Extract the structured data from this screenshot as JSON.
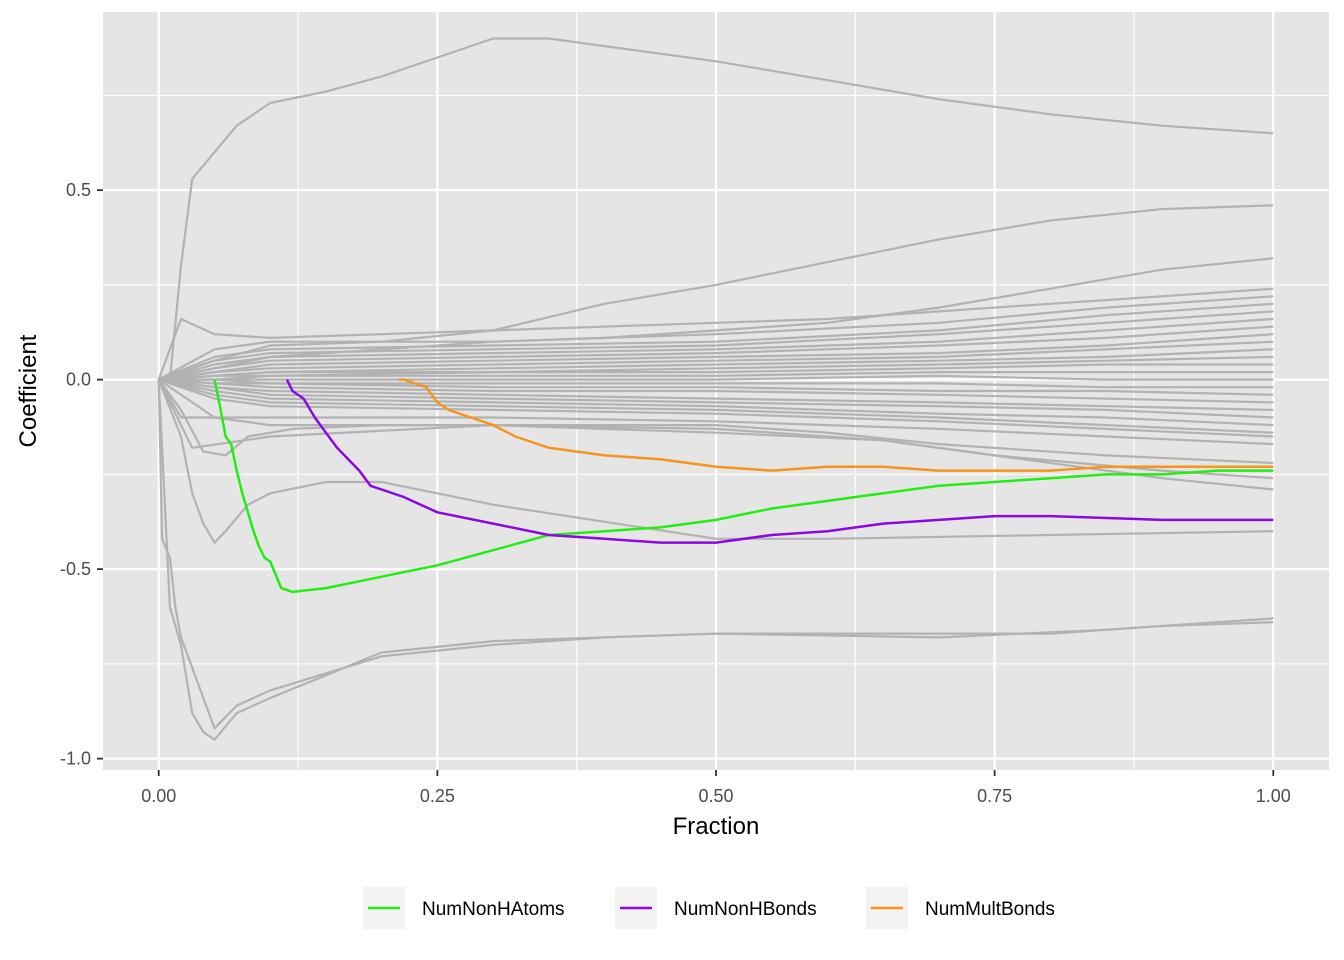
{
  "chart_data": {
    "type": "line",
    "xlabel": "Fraction",
    "ylabel": "Coefficient",
    "xlim": [
      -0.05,
      1.05
    ],
    "ylim": [
      -1.03,
      0.97
    ],
    "x_ticks": [
      0,
      0.25,
      0.5,
      0.75,
      1
    ],
    "x_tick_labels": [
      "0.00",
      "0.25",
      "0.50",
      "0.75",
      "1.00"
    ],
    "y_ticks": [
      -1,
      -0.5,
      0,
      0.5
    ],
    "y_tick_labels": [
      "-1.0",
      "-0.5",
      "0.0",
      "0.5"
    ],
    "grid": true,
    "legend_position": "bottom",
    "colors": {
      "panel": "#e5e5e5",
      "grid": "#ffffff",
      "background": "#a9a9a9b0",
      "NumNonHAtoms": "#22ee11",
      "NumNonHBonds": "#8b08e0",
      "NumMultBonds": "#f7941d"
    },
    "background_series": [
      {
        "x": [
          0,
          0.01,
          0.02,
          0.03,
          0.05,
          0.07,
          0.1,
          0.15,
          0.2,
          0.25,
          0.3,
          0.35,
          0.4,
          0.5,
          0.6,
          0.7,
          0.8,
          0.9,
          1.0
        ],
        "y": [
          0,
          0,
          0.3,
          0.53,
          0.6,
          0.67,
          0.73,
          0.76,
          0.8,
          0.85,
          0.9,
          0.9,
          0.88,
          0.84,
          0.79,
          0.74,
          0.7,
          0.67,
          0.65
        ]
      },
      {
        "x": [
          0,
          0.05,
          0.1,
          0.2,
          0.3,
          0.4,
          0.5,
          0.6,
          0.7,
          0.8,
          0.9,
          1.0
        ],
        "y": [
          0,
          0.05,
          0.09,
          0.1,
          0.13,
          0.2,
          0.25,
          0.31,
          0.37,
          0.42,
          0.45,
          0.46
        ]
      },
      {
        "x": [
          0,
          0.05,
          0.1,
          0.2,
          0.3,
          0.4,
          0.5,
          0.6,
          0.7,
          0.8,
          0.9,
          1.0
        ],
        "y": [
          0,
          0.03,
          0.06,
          0.08,
          0.1,
          0.11,
          0.13,
          0.15,
          0.19,
          0.24,
          0.29,
          0.32
        ]
      },
      {
        "x": [
          0,
          0.02,
          0.05,
          0.1,
          0.2,
          0.3,
          0.4,
          0.5,
          0.6,
          0.7,
          0.8,
          0.9,
          1.0
        ],
        "y": [
          0,
          0.16,
          0.12,
          0.11,
          0.12,
          0.13,
          0.14,
          0.15,
          0.16,
          0.18,
          0.2,
          0.22,
          0.24
        ]
      },
      {
        "x": [
          0,
          0.05,
          0.1,
          0.3,
          0.5,
          0.7,
          0.85,
          1.0
        ],
        "y": [
          0,
          0.08,
          0.1,
          0.1,
          0.12,
          0.15,
          0.19,
          0.22
        ]
      },
      {
        "x": [
          0,
          0.05,
          0.1,
          0.3,
          0.5,
          0.7,
          0.85,
          1.0
        ],
        "y": [
          0,
          0.06,
          0.08,
          0.09,
          0.1,
          0.13,
          0.17,
          0.2
        ]
      },
      {
        "x": [
          0,
          0.05,
          0.1,
          0.3,
          0.5,
          0.7,
          0.85,
          1.0
        ],
        "y": [
          0,
          0.05,
          0.07,
          0.08,
          0.09,
          0.12,
          0.15,
          0.18
        ]
      },
      {
        "x": [
          0,
          0.05,
          0.1,
          0.3,
          0.5,
          0.7,
          0.85,
          1.0
        ],
        "y": [
          0,
          0.04,
          0.06,
          0.07,
          0.08,
          0.1,
          0.13,
          0.16
        ]
      },
      {
        "x": [
          0,
          0.05,
          0.1,
          0.3,
          0.5,
          0.7,
          0.85,
          1.0
        ],
        "y": [
          0,
          0.03,
          0.05,
          0.06,
          0.07,
          0.09,
          0.11,
          0.14
        ]
      },
      {
        "x": [
          0,
          0.05,
          0.1,
          0.3,
          0.5,
          0.7,
          0.85,
          1.0
        ],
        "y": [
          0,
          0.02,
          0.04,
          0.05,
          0.06,
          0.07,
          0.09,
          0.12
        ]
      },
      {
        "x": [
          0,
          0.05,
          0.1,
          0.3,
          0.5,
          0.7,
          0.85,
          1.0
        ],
        "y": [
          0,
          0.02,
          0.03,
          0.04,
          0.05,
          0.06,
          0.08,
          0.1
        ]
      },
      {
        "x": [
          0,
          0.05,
          0.1,
          0.3,
          0.5,
          0.7,
          0.85,
          1.0
        ],
        "y": [
          0,
          0.01,
          0.02,
          0.03,
          0.04,
          0.05,
          0.06,
          0.08
        ]
      },
      {
        "x": [
          0,
          0.05,
          0.1,
          0.3,
          0.5,
          0.7,
          0.85,
          1.0
        ],
        "y": [
          0,
          0.01,
          0.02,
          0.02,
          0.03,
          0.04,
          0.05,
          0.06
        ]
      },
      {
        "x": [
          0,
          0.05,
          0.1,
          0.3,
          0.5,
          0.7,
          0.85,
          1.0
        ],
        "y": [
          0,
          0.01,
          0.01,
          0.02,
          0.02,
          0.03,
          0.04,
          0.04
        ]
      },
      {
        "x": [
          0,
          0.05,
          0.1,
          0.3,
          0.5,
          0.7,
          0.85,
          1.0
        ],
        "y": [
          0,
          0,
          0.01,
          0.01,
          0.01,
          0.02,
          0.02,
          0.02
        ]
      },
      {
        "x": [
          0,
          0.05,
          0.1,
          0.3,
          0.5,
          0.7,
          0.85,
          1.0
        ],
        "y": [
          0,
          0,
          0,
          0,
          0,
          0.01,
          0,
          0
        ]
      },
      {
        "x": [
          0,
          0.05,
          0.1,
          0.3,
          0.5,
          0.7,
          0.85,
          1.0
        ],
        "y": [
          0,
          0,
          -0.01,
          -0.01,
          -0.01,
          -0.01,
          -0.02,
          -0.02
        ]
      },
      {
        "x": [
          0,
          0.05,
          0.1,
          0.3,
          0.5,
          0.7,
          0.85,
          1.0
        ],
        "y": [
          0,
          -0.01,
          -0.01,
          -0.02,
          -0.02,
          -0.03,
          -0.03,
          -0.04
        ]
      },
      {
        "x": [
          0,
          0.05,
          0.1,
          0.3,
          0.5,
          0.7,
          0.85,
          1.0
        ],
        "y": [
          0,
          -0.01,
          -0.02,
          -0.03,
          -0.03,
          -0.04,
          -0.05,
          -0.06
        ]
      },
      {
        "x": [
          0,
          0.05,
          0.1,
          0.3,
          0.5,
          0.7,
          0.85,
          1.0
        ],
        "y": [
          0,
          -0.02,
          -0.03,
          -0.04,
          -0.05,
          -0.06,
          -0.07,
          -0.08
        ]
      },
      {
        "x": [
          0,
          0.05,
          0.1,
          0.3,
          0.5,
          0.7,
          0.85,
          1.0
        ],
        "y": [
          0,
          -0.02,
          -0.04,
          -0.05,
          -0.06,
          -0.07,
          -0.08,
          -0.1
        ]
      },
      {
        "x": [
          0,
          0.05,
          0.1,
          0.3,
          0.5,
          0.7,
          0.85,
          1.0
        ],
        "y": [
          0,
          -0.03,
          -0.05,
          -0.06,
          -0.07,
          -0.09,
          -0.1,
          -0.12
        ]
      },
      {
        "x": [
          0,
          0.05,
          0.1,
          0.3,
          0.5,
          0.7,
          0.85,
          1.0
        ],
        "y": [
          0,
          -0.04,
          -0.06,
          -0.07,
          -0.08,
          -0.1,
          -0.12,
          -0.14
        ]
      },
      {
        "x": [
          0,
          0.05,
          0.1,
          0.3,
          0.5,
          0.7,
          0.85,
          1.0
        ],
        "y": [
          0,
          -0.05,
          -0.07,
          -0.08,
          -0.09,
          -0.11,
          -0.13,
          -0.15
        ]
      },
      {
        "x": [
          0,
          0.02,
          0.05,
          0.1,
          0.3,
          0.5,
          0.7,
          0.85,
          1.0
        ],
        "y": [
          0,
          -0.1,
          -0.1,
          -0.1,
          -0.1,
          -0.11,
          -0.13,
          -0.15,
          -0.17
        ]
      },
      {
        "x": [
          0,
          0.03,
          0.1,
          0.3,
          0.5,
          0.6,
          0.7,
          0.85,
          1.0
        ],
        "y": [
          0,
          -0.18,
          -0.15,
          -0.12,
          -0.12,
          -0.14,
          -0.17,
          -0.2,
          -0.22
        ]
      },
      {
        "x": [
          0,
          0.05,
          0.1,
          0.3,
          0.5,
          0.65,
          0.75,
          0.9,
          1.0
        ],
        "y": [
          0,
          -0.1,
          -0.12,
          -0.12,
          -0.13,
          -0.16,
          -0.2,
          -0.24,
          -0.26
        ]
      },
      {
        "x": [
          0,
          0.02,
          0.04,
          0.06,
          0.08,
          0.12,
          0.2,
          0.3,
          0.5,
          0.65,
          0.75,
          0.9,
          1.0
        ],
        "y": [
          0,
          -0.08,
          -0.19,
          -0.2,
          -0.15,
          -0.13,
          -0.12,
          -0.12,
          -0.14,
          -0.16,
          -0.2,
          -0.26,
          -0.29
        ]
      },
      {
        "x": [
          0,
          0.02,
          0.03,
          0.04,
          0.05,
          0.06,
          0.08,
          0.1,
          0.15,
          0.2,
          0.3,
          0.5,
          0.6,
          0.8,
          1.0
        ],
        "y": [
          0,
          -0.15,
          -0.3,
          -0.38,
          -0.43,
          -0.4,
          -0.33,
          -0.3,
          -0.27,
          -0.27,
          -0.33,
          -0.42,
          -0.42,
          -0.41,
          -0.4
        ]
      },
      {
        "x": [
          0,
          0.01,
          0.02,
          0.03,
          0.04,
          0.05,
          0.07,
          0.1,
          0.15,
          0.2,
          0.3,
          0.5,
          0.7,
          0.85,
          1.0
        ],
        "y": [
          0,
          -0.6,
          -0.7,
          -0.88,
          -0.93,
          -0.95,
          -0.88,
          -0.84,
          -0.78,
          -0.72,
          -0.69,
          -0.67,
          -0.68,
          -0.66,
          -0.63
        ]
      },
      {
        "x": [
          0,
          0.003,
          0.01,
          0.015,
          0.02,
          0.05,
          0.07,
          0.1,
          0.2,
          0.3,
          0.4,
          0.5,
          0.6,
          0.7,
          0.8,
          0.9,
          1.0
        ],
        "y": [
          0,
          -0.42,
          -0.47,
          -0.6,
          -0.68,
          -0.92,
          -0.86,
          -0.82,
          -0.73,
          -0.7,
          -0.68,
          -0.67,
          -0.67,
          -0.67,
          -0.67,
          -0.65,
          -0.64
        ]
      }
    ],
    "series": [
      {
        "name": "NumNonHAtoms",
        "x": [
          0.05,
          0.055,
          0.06,
          0.065,
          0.07,
          0.075,
          0.08,
          0.085,
          0.09,
          0.095,
          0.1,
          0.11,
          0.12,
          0.15,
          0.2,
          0.25,
          0.3,
          0.35,
          0.4,
          0.45,
          0.5,
          0.55,
          0.6,
          0.65,
          0.7,
          0.75,
          0.8,
          0.85,
          0.9,
          0.95,
          1.0
        ],
        "y": [
          0,
          -0.07,
          -0.15,
          -0.17,
          -0.24,
          -0.3,
          -0.35,
          -0.4,
          -0.44,
          -0.47,
          -0.48,
          -0.55,
          -0.56,
          -0.55,
          -0.52,
          -0.49,
          -0.45,
          -0.41,
          -0.4,
          -0.39,
          -0.37,
          -0.34,
          -0.32,
          -0.3,
          -0.28,
          -0.27,
          -0.26,
          -0.25,
          -0.25,
          -0.24,
          -0.24
        ]
      },
      {
        "name": "NumNonHBonds",
        "x": [
          0.115,
          0.12,
          0.13,
          0.14,
          0.15,
          0.16,
          0.17,
          0.18,
          0.19,
          0.2,
          0.22,
          0.25,
          0.3,
          0.35,
          0.4,
          0.45,
          0.5,
          0.55,
          0.6,
          0.65,
          0.7,
          0.75,
          0.8,
          0.9,
          1.0
        ],
        "y": [
          0,
          -0.03,
          -0.05,
          -0.1,
          -0.14,
          -0.18,
          -0.21,
          -0.24,
          -0.28,
          -0.29,
          -0.31,
          -0.35,
          -0.38,
          -0.41,
          -0.42,
          -0.43,
          -0.43,
          -0.41,
          -0.4,
          -0.38,
          -0.37,
          -0.36,
          -0.36,
          -0.37,
          -0.37
        ]
      },
      {
        "name": "NumMultBonds",
        "x": [
          0.215,
          0.22,
          0.24,
          0.25,
          0.26,
          0.28,
          0.3,
          0.32,
          0.35,
          0.4,
          0.45,
          0.5,
          0.55,
          0.6,
          0.65,
          0.7,
          0.75,
          0.8,
          0.85,
          0.9,
          0.95,
          1.0
        ],
        "y": [
          0,
          0,
          -0.02,
          -0.06,
          -0.08,
          -0.1,
          -0.12,
          -0.15,
          -0.18,
          -0.2,
          -0.21,
          -0.23,
          -0.24,
          -0.23,
          -0.23,
          -0.24,
          -0.24,
          -0.24,
          -0.23,
          -0.23,
          -0.23,
          -0.23
        ]
      }
    ]
  }
}
